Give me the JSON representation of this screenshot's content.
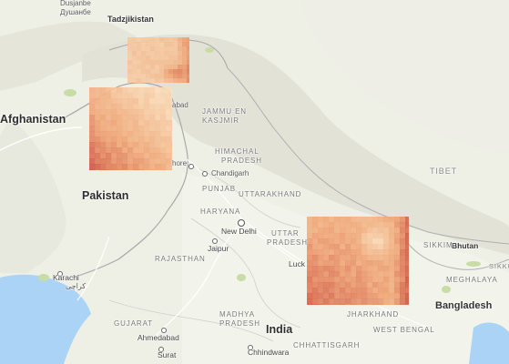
{
  "map": {
    "countries": {
      "tajikistan": "Tadzjikistan",
      "afghanistan": "Afghanistan",
      "pakistan": "Pakistan",
      "india": "India",
      "bangladesh": "Bangladesh",
      "tibet": "TIBET",
      "bhutan": "Bhutan"
    },
    "regions": {
      "jammu_kashmir_1": "JAMMU EN",
      "jammu_kashmir_2": "KASJMIR",
      "himachal_1": "HIMACHAL",
      "himachal_2": "PRADESH",
      "punjab": "PUNJAB",
      "uttarakhand": "UTTARAKHAND",
      "haryana": "HARYANA",
      "uttar_pradesh_1": "UTTAR",
      "uttar_pradesh_2": "PRADESH",
      "rajasthan": "RAJASTHAN",
      "madhya_pradesh_1": "MADHYA",
      "madhya_pradesh_2": "PRADESH",
      "gujarat": "GUJARAT",
      "jharkhand": "JHARKHAND",
      "west_bengal": "WEST BENGAL",
      "chhattisgarh": "CHHATTISGARH",
      "meghalaya": "MEGHALAYA",
      "sikkim": "SIKKIM"
    },
    "cities": {
      "dushanbe": "Dusjanbe",
      "dushanbe_local": "Душанбе",
      "islamabad_partial": "abad",
      "lahore_partial": "hore",
      "chandigarh": "Chandigarh",
      "new_delhi": "New Delhi",
      "jaipur": "Jaipur",
      "lucknow_partial": "Luck",
      "karachi": "Karachi",
      "karachi_local": "كراچی",
      "ahmedabad": "Ahmedabad",
      "surat": "Surat",
      "chhindwara": "Chhindwara"
    },
    "colors": {
      "land": "#eef0e6",
      "mountains": "#dcdcd0",
      "water": "#aad3f5",
      "heat_low": "#fbe3c2",
      "heat_mid": "#f0a878",
      "heat_high": "#c4372a"
    }
  }
}
